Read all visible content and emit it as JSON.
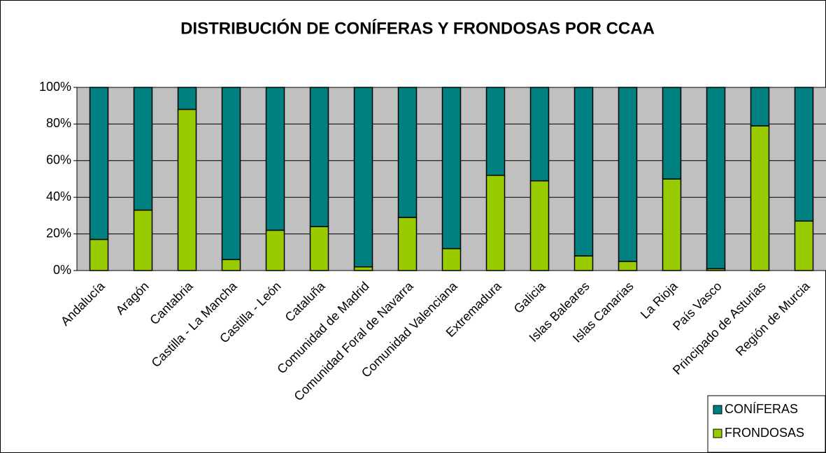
{
  "chart_data": {
    "type": "stacked_bar_100",
    "title": "DISTRIBUCIÓN DE CONÍFERAS Y FRONDOSAS POR CCAA",
    "categories": [
      "Andalucía",
      "Aragón",
      "Cantabria",
      "Castilla - La Mancha",
      "Castilla - León",
      "Cataluña",
      "Comunidad de Madrid",
      "Comunidad Foral de Navarra",
      "Comunidad Valenciana",
      "Extremadura",
      "Galicia",
      "Islas Baleares",
      "Islas Canarias",
      "La Rioja",
      "País Vasco",
      "Principado de Asturias",
      "Región de Murcia"
    ],
    "series": [
      {
        "name": "FRONDOSAS",
        "color": "#99cc00",
        "values": [
          17,
          33,
          88,
          6,
          22,
          24,
          2,
          29,
          12,
          52,
          49,
          8,
          5,
          50,
          1,
          79,
          27
        ]
      },
      {
        "name": "CONÍFERAS",
        "color": "#008080",
        "values": [
          83,
          67,
          12,
          94,
          78,
          76,
          98,
          71,
          88,
          48,
          51,
          92,
          95,
          50,
          99,
          21,
          73
        ]
      }
    ],
    "ylim": [
      0,
      100
    ],
    "yticks": [
      {
        "value": 0,
        "label": "0%"
      },
      {
        "value": 20,
        "label": "20%"
      },
      {
        "value": 40,
        "label": "40%"
      },
      {
        "value": 60,
        "label": "60%"
      },
      {
        "value": 80,
        "label": "80%"
      },
      {
        "value": 100,
        "label": "100%"
      }
    ],
    "grid": true,
    "legend": "bottom-right",
    "background": "#c0c0c0"
  }
}
